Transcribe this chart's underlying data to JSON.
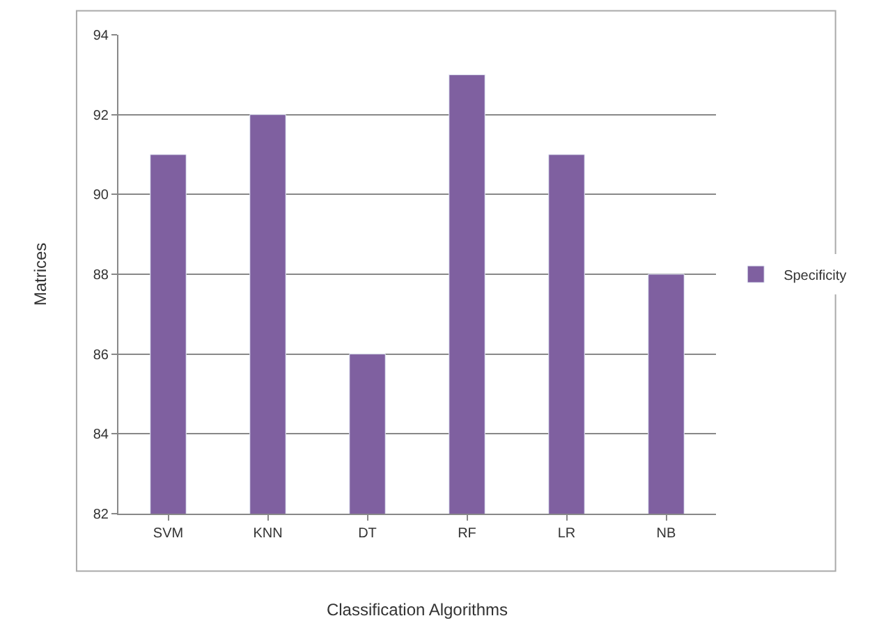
{
  "chart_data": {
    "type": "bar",
    "xlabel": "Classification Algorithms",
    "ylabel": "Matrices",
    "categories": [
      "SVM",
      "KNN",
      "DT",
      "RF",
      "LR",
      "NB"
    ],
    "series": [
      {
        "name": "Specificity",
        "color": "#7f60a0",
        "values": [
          91,
          92,
          86,
          93,
          91,
          88
        ]
      }
    ],
    "ylim": [
      82,
      94
    ],
    "yticks": [
      82,
      84,
      86,
      88,
      90,
      92,
      94
    ],
    "grid": "y",
    "legend": "right"
  }
}
